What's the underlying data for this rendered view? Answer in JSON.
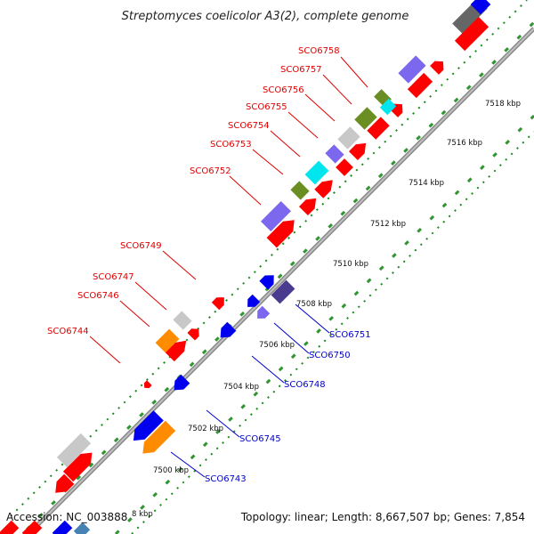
{
  "title": "Streptomyces coelicolor A3(2), complete genome",
  "footer": {
    "accession": "Accession: NC_003888",
    "topology": "Topology: linear; Length: 8,667,507 bp; Genes: 7,854"
  },
  "scale_labels": [
    "7518 kbp",
    "7516 kbp",
    "7514 kbp",
    "7512 kbp",
    "7510 kbp",
    "7508 kbp",
    "7506 kbp",
    "7504 kbp",
    "7502 kbp",
    "7500 kbp",
    "8 kbp"
  ],
  "gene_labels_top": [
    "SCO6758",
    "SCO6757",
    "SCO6756",
    "SCO6755",
    "SCO6754",
    "SCO6753",
    "SCO6752",
    "SCO6749",
    "SCO6747",
    "SCO6746",
    "SCO6744"
  ],
  "gene_labels_bottom": [
    "SCO6751",
    "SCO6750",
    "SCO6748",
    "SCO6745",
    "SCO6743"
  ],
  "colors": {
    "red": "#ff0000",
    "blue": "#0000ee",
    "orange": "#ff8c00",
    "slate": "#7b68ee",
    "grey": "#c8c8c8",
    "dark_grey": "#666666",
    "olive": "#6b8e23",
    "cyan": "#00e5ee",
    "green_tick": "#1a8a1a"
  }
}
